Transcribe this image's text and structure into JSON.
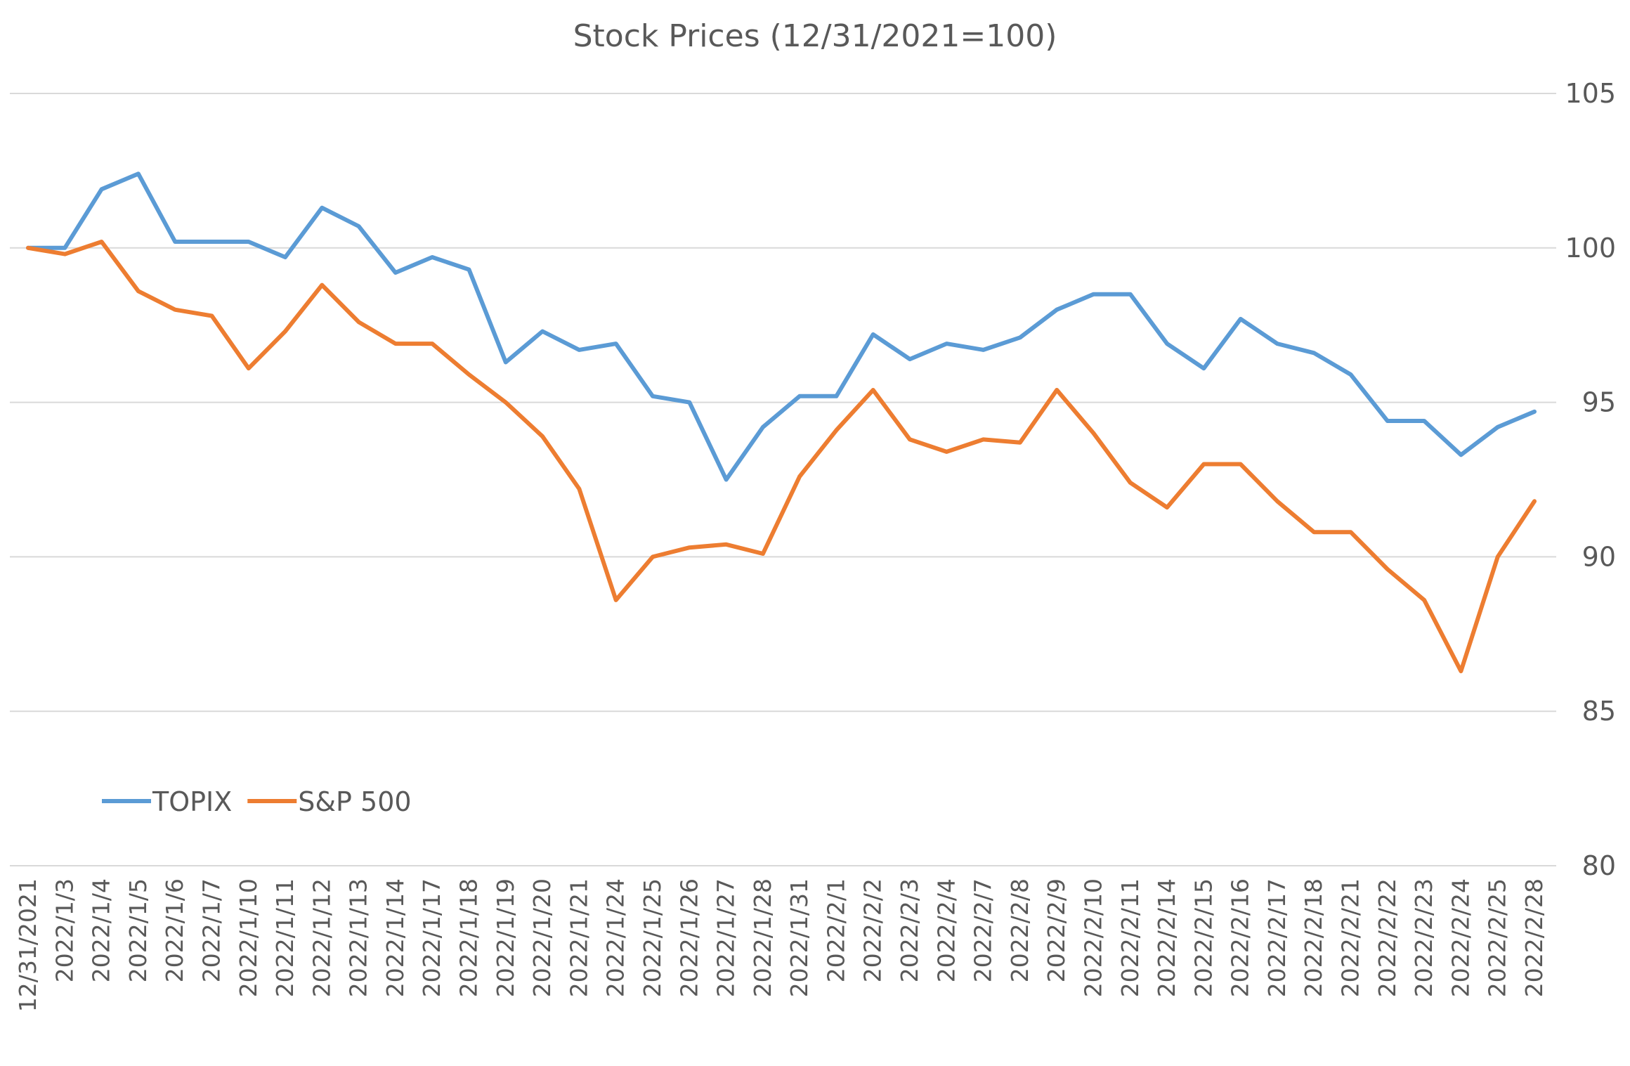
{
  "chart_data": {
    "type": "line",
    "title": "Stock Prices (12/31/2021=100)",
    "xlabel": "",
    "ylabel": "",
    "ylim": [
      80,
      105
    ],
    "yticks": [
      "80",
      "85",
      "90",
      "95",
      "100",
      "105"
    ],
    "grid": true,
    "legend_position": "bottom-left",
    "categories": [
      "12/31/2021",
      "2022/1/3",
      "2022/1/4",
      "2022/1/5",
      "2022/1/6",
      "2022/1/7",
      "2022/1/10",
      "2022/1/11",
      "2022/1/12",
      "2022/1/13",
      "2022/1/14",
      "2022/1/17",
      "2022/1/18",
      "2022/1/19",
      "2022/1/20",
      "2022/1/21",
      "2022/1/24",
      "2022/1/25",
      "2022/1/26",
      "2022/1/27",
      "2022/1/28",
      "2022/1/31",
      "2022/2/1",
      "2022/2/2",
      "2022/2/3",
      "2022/2/4",
      "2022/2/7",
      "2022/2/8",
      "2022/2/9",
      "2022/2/10",
      "2022/2/11",
      "2022/2/14",
      "2022/2/15",
      "2022/2/16",
      "2022/2/17",
      "2022/2/18",
      "2022/2/21",
      "2022/2/22",
      "2022/2/23",
      "2022/2/24",
      "2022/2/25",
      "2022/2/28"
    ],
    "series": [
      {
        "name": "TOPIX",
        "color": "#5B9BD5",
        "values": [
          100.0,
          100.0,
          101.9,
          102.4,
          100.2,
          100.2,
          100.2,
          99.7,
          101.3,
          100.7,
          99.2,
          99.7,
          99.3,
          96.3,
          97.3,
          96.7,
          96.9,
          95.2,
          95.0,
          92.5,
          94.2,
          95.2,
          95.2,
          97.2,
          96.4,
          96.9,
          96.7,
          97.1,
          98.0,
          98.5,
          98.5,
          96.9,
          96.1,
          97.7,
          96.9,
          96.6,
          95.9,
          94.4,
          94.4,
          93.3,
          94.2,
          94.7
        ],
        "values_printed": []
      },
      {
        "name": "S&P 500",
        "color": "#ED7D31",
        "values": [
          100.0,
          99.8,
          100.2,
          98.6,
          98.0,
          97.8,
          96.1,
          97.3,
          98.8,
          97.6,
          96.9,
          96.9,
          95.9,
          95.0,
          93.9,
          92.2,
          88.6,
          90.0,
          90.3,
          90.4,
          90.1,
          92.6,
          94.1,
          95.4,
          93.8,
          93.4,
          93.8,
          93.7,
          95.4,
          94.0,
          92.4,
          91.6,
          93.0,
          93.0,
          91.8,
          90.8,
          90.8,
          89.6,
          88.6,
          86.3,
          90.0,
          91.8
        ],
        "values_printed": []
      }
    ]
  }
}
